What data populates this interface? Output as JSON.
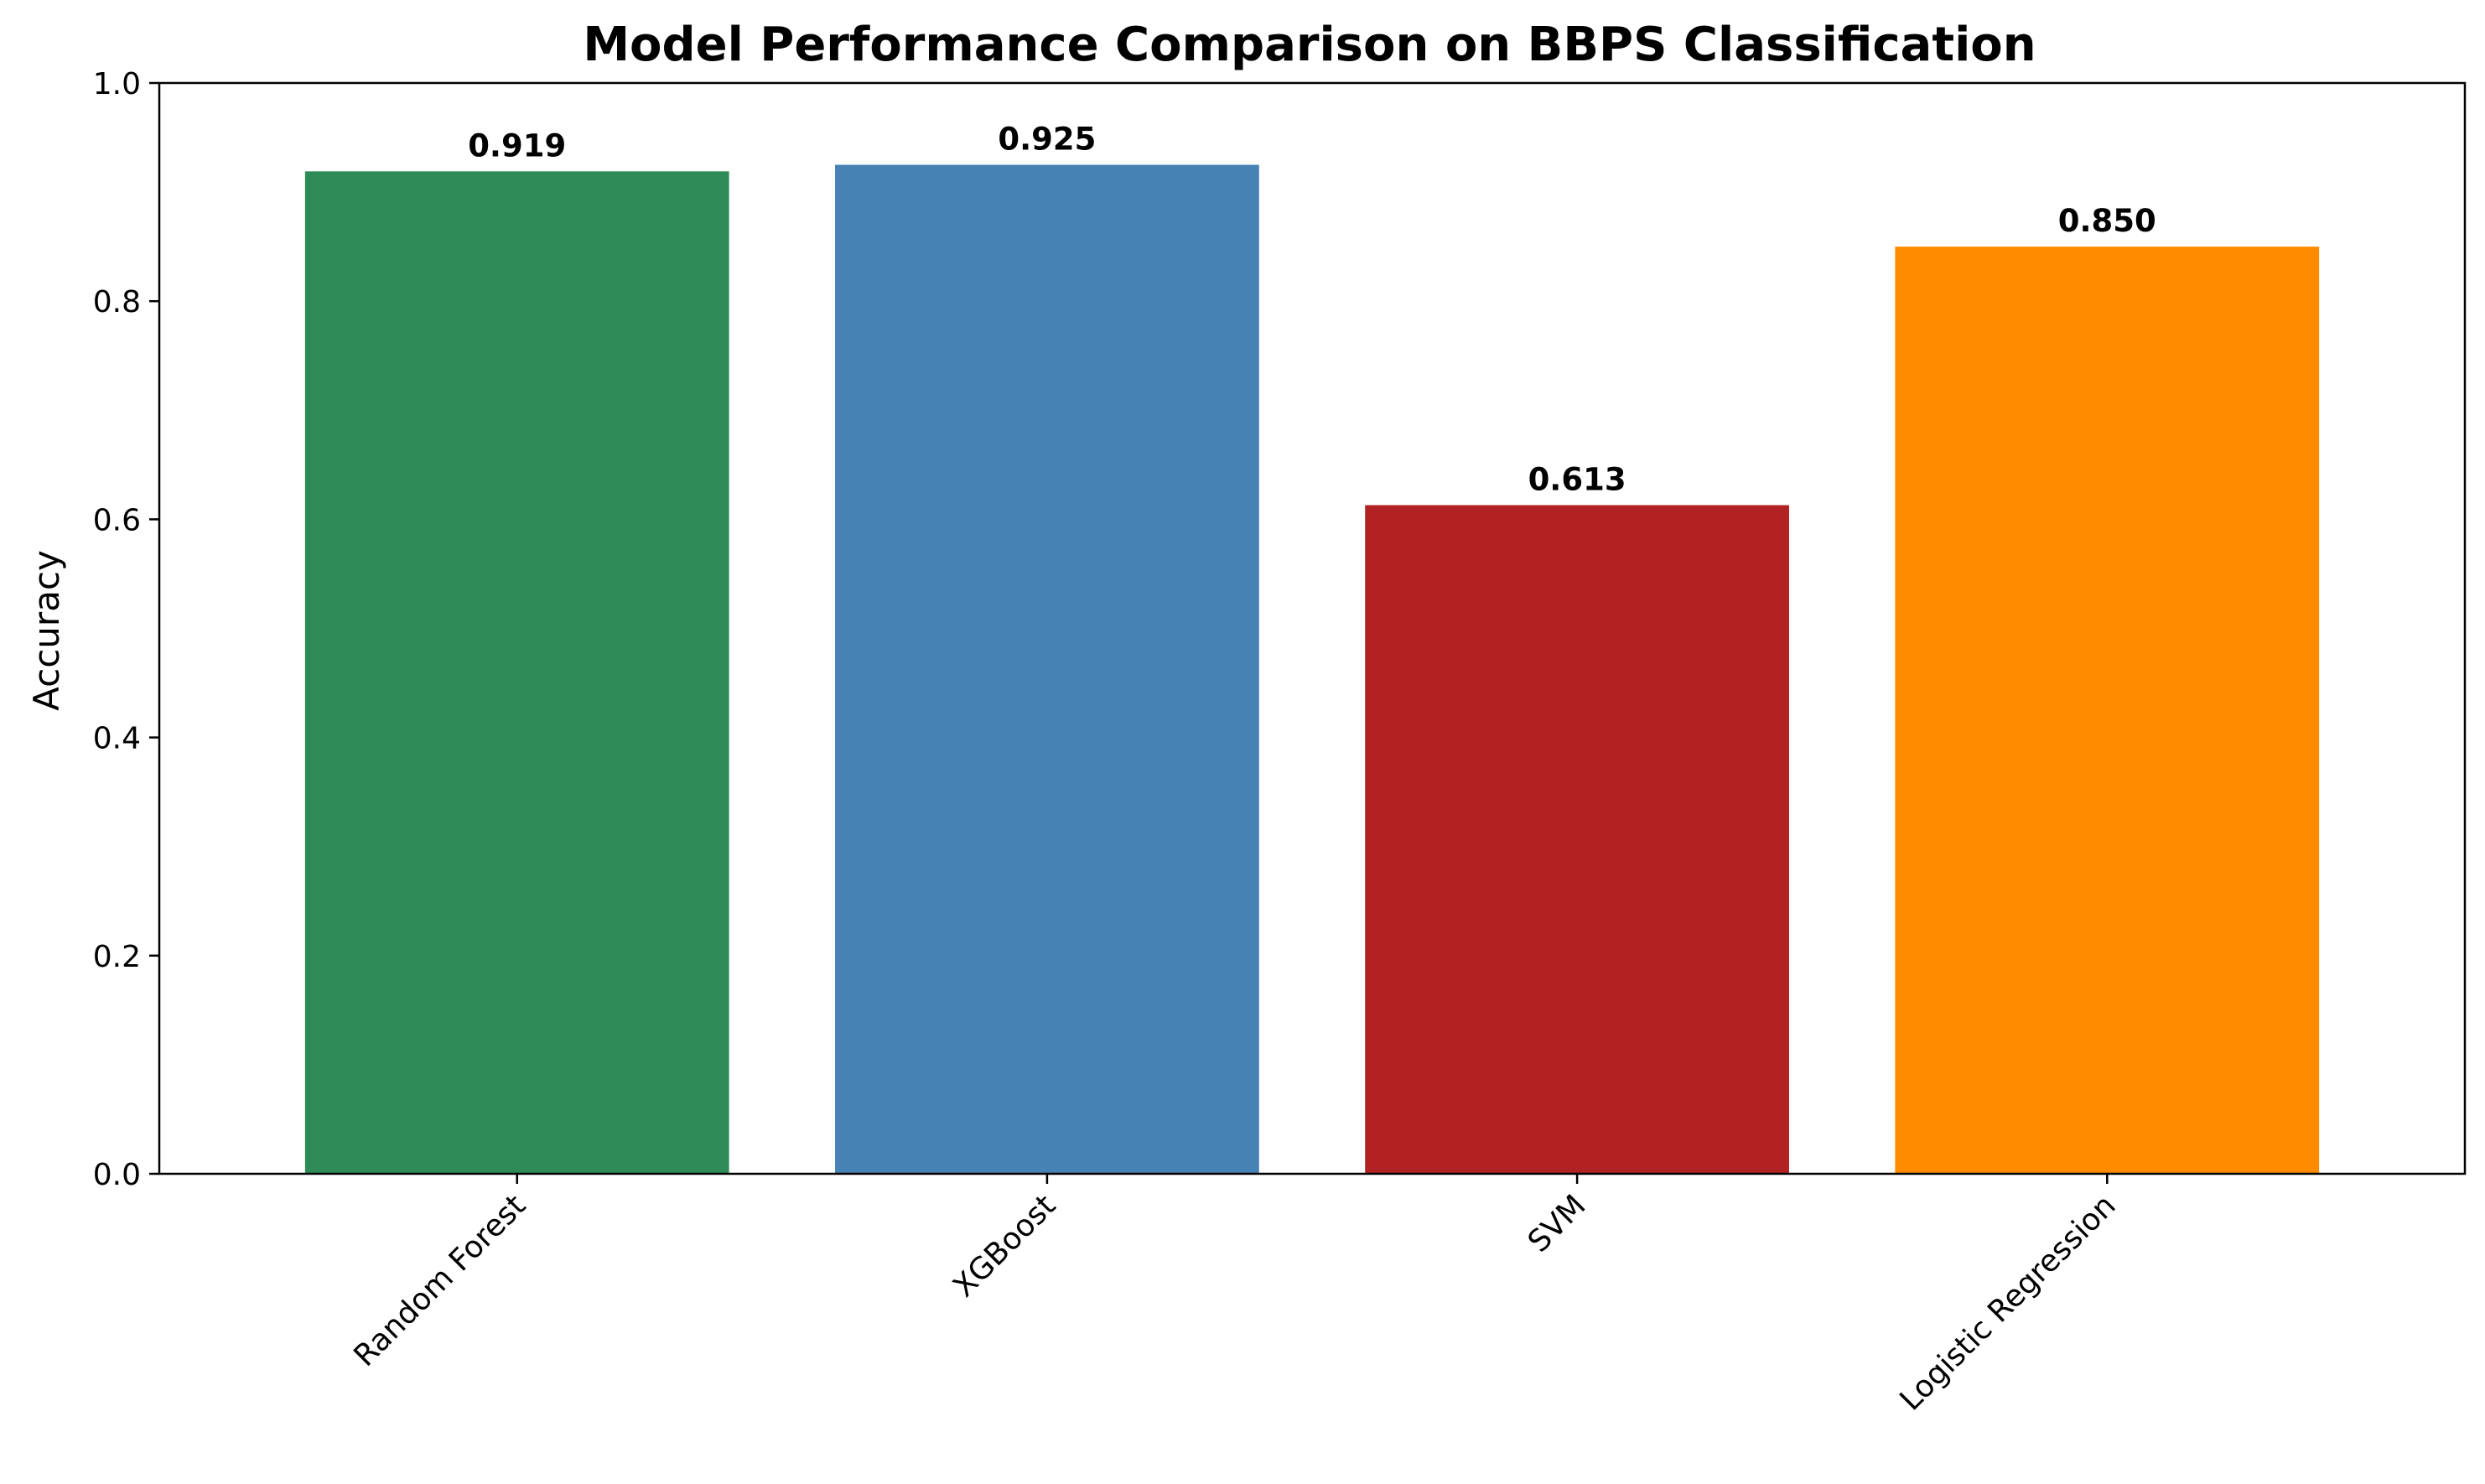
{
  "chart_data": {
    "type": "bar",
    "title": "Model Performance Comparison on BBPS Classification",
    "xlabel": "",
    "ylabel": "Accuracy",
    "categories": [
      "Random Forest",
      "XGBoost",
      "SVM",
      "Logistic Regression"
    ],
    "values": [
      0.919,
      0.925,
      0.613,
      0.85
    ],
    "value_labels": [
      "0.919",
      "0.925",
      "0.613",
      "0.850"
    ],
    "colors": [
      "#2e8b57",
      "#4682b4",
      "#b22222",
      "#ff8c00"
    ],
    "ylim": [
      0,
      1.0
    ],
    "yticks": [
      0.0,
      0.2,
      0.4,
      0.6,
      0.8,
      1.0
    ],
    "ytick_labels": [
      "0.0",
      "0.2",
      "0.4",
      "0.6",
      "0.8",
      "1.0"
    ],
    "xtick_rotation": 45,
    "grid": false,
    "legend": "none"
  }
}
